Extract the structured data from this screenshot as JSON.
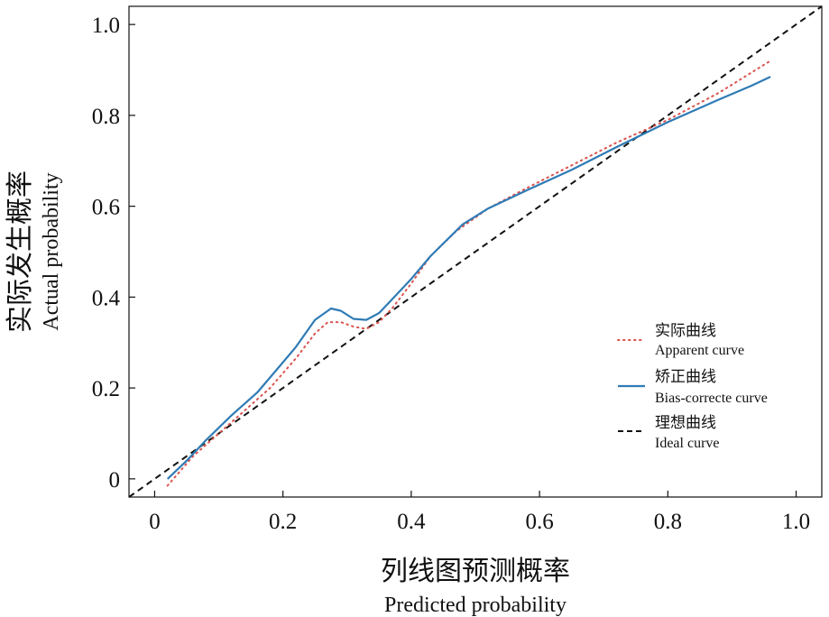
{
  "chart_data": {
    "type": "line",
    "xlabel_cn": "列线图预测概率",
    "xlabel_en": "Predicted probability",
    "ylabel_cn": "实际发生概率",
    "ylabel_en": "Actual probability",
    "xlim": [
      -0.04,
      1.04
    ],
    "ylim": [
      -0.04,
      1.04
    ],
    "x_ticks": [
      0,
      0.2,
      0.4,
      0.6,
      0.8,
      1.0
    ],
    "x_tick_labels": [
      "0",
      "0.2",
      "0.4",
      "0.6",
      "0.8",
      "1.0"
    ],
    "y_ticks": [
      0,
      0.2,
      0.4,
      0.6,
      0.8,
      1.0
    ],
    "y_tick_labels": [
      "0",
      "0.2",
      "0.4",
      "0.6",
      "0.8",
      "1.0"
    ],
    "grid": false,
    "legend_position": "lower-right",
    "series": [
      {
        "key": "apparent",
        "name_cn": "实际曲线",
        "name_en": "Apparent curve",
        "color": "#d9534f",
        "style": "dotted",
        "x": [
          0.02,
          0.06,
          0.1,
          0.14,
          0.18,
          0.22,
          0.25,
          0.27,
          0.29,
          0.31,
          0.33,
          0.35,
          0.37,
          0.4,
          0.43,
          0.47,
          0.52,
          0.58,
          0.65,
          0.72,
          0.8,
          0.88,
          0.96
        ],
        "y": [
          -0.015,
          0.05,
          0.1,
          0.15,
          0.2,
          0.265,
          0.32,
          0.345,
          0.345,
          0.335,
          0.33,
          0.345,
          0.375,
          0.43,
          0.49,
          0.545,
          0.595,
          0.64,
          0.69,
          0.74,
          0.79,
          0.85,
          0.92
        ]
      },
      {
        "key": "bias_corrected",
        "name_cn": "矫正曲线",
        "name_en": "Bias-correcte curve",
        "color": "#2f7bb5",
        "style": "solid",
        "x": [
          0.02,
          0.05,
          0.08,
          0.12,
          0.16,
          0.19,
          0.22,
          0.25,
          0.275,
          0.29,
          0.31,
          0.33,
          0.35,
          0.37,
          0.4,
          0.43,
          0.48,
          0.52,
          0.58,
          0.65,
          0.72,
          0.8,
          0.88,
          0.93,
          0.96
        ],
        "y": [
          0.0,
          0.04,
          0.085,
          0.14,
          0.19,
          0.24,
          0.29,
          0.35,
          0.375,
          0.37,
          0.352,
          0.35,
          0.365,
          0.395,
          0.44,
          0.49,
          0.56,
          0.595,
          0.635,
          0.68,
          0.73,
          0.785,
          0.835,
          0.865,
          0.885
        ]
      },
      {
        "key": "ideal",
        "name_cn": "理想曲线",
        "name_en": "Ideal curve",
        "color": "#111111",
        "style": "dashed",
        "x": [
          -0.04,
          1.04
        ],
        "y": [
          -0.04,
          1.04
        ]
      }
    ]
  }
}
